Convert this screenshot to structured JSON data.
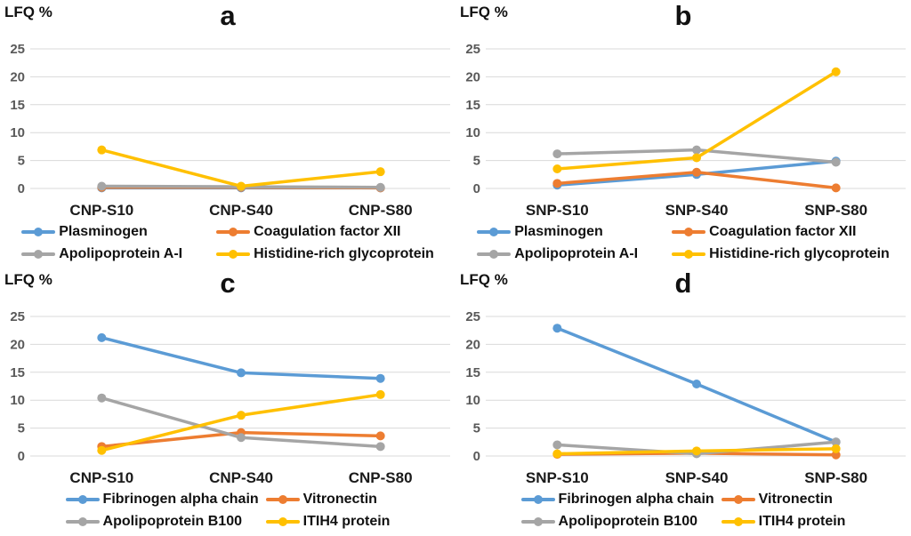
{
  "figure_title": "",
  "colors": {
    "blue": "#5B9BD5",
    "orange": "#ED7D31",
    "gray": "#A5A5A5",
    "yellow": "#FFC000",
    "gridline": "#D9D9D9",
    "tick_text": "#595959"
  },
  "chart_data": [
    {
      "type": "line",
      "title": "a",
      "ylabel": "LFQ %",
      "ylim": [
        0,
        25
      ],
      "y_ticks": [
        0,
        5,
        10,
        15,
        20,
        25
      ],
      "grid": true,
      "legend_position": "bottom",
      "categories": [
        "CNP-S10",
        "CNP-S40",
        "CNP-S80"
      ],
      "series": [
        {
          "name": "Plasminogen",
          "color": "#5B9BD5",
          "values": [
            0.1,
            0.1,
            0.1
          ]
        },
        {
          "name": "Coagulation factor XII",
          "color": "#ED7D31",
          "values": [
            0.2,
            0.2,
            0.1
          ]
        },
        {
          "name": "Apolipoprotein A-I",
          "color": "#A5A5A5",
          "values": [
            0.4,
            0.3,
            0.2
          ]
        },
        {
          "name": "Histidine-rich glycoprotein",
          "color": "#FFC000",
          "values": [
            6.9,
            0.4,
            3.0
          ]
        }
      ]
    },
    {
      "type": "line",
      "title": "b",
      "ylabel": "LFQ %",
      "ylim": [
        0,
        25
      ],
      "y_ticks": [
        0,
        5,
        10,
        15,
        20,
        25
      ],
      "grid": true,
      "legend_position": "bottom",
      "categories": [
        "SNP-S10",
        "SNP-S40",
        "SNP-S80"
      ],
      "series": [
        {
          "name": "Plasminogen",
          "color": "#5B9BD5",
          "values": [
            0.6,
            2.5,
            4.9
          ]
        },
        {
          "name": "Coagulation factor XII",
          "color": "#ED7D31",
          "values": [
            0.9,
            2.9,
            0.1
          ]
        },
        {
          "name": "Apolipoprotein A-I",
          "color": "#A5A5A5",
          "values": [
            6.2,
            6.9,
            4.7
          ]
        },
        {
          "name": "Histidine-rich glycoprotein",
          "color": "#FFC000",
          "values": [
            3.5,
            5.5,
            20.9
          ]
        }
      ]
    },
    {
      "type": "line",
      "title": "c",
      "ylabel": "LFQ %",
      "ylim": [
        0,
        25
      ],
      "y_ticks": [
        0,
        5,
        10,
        15,
        20,
        25
      ],
      "grid": true,
      "legend_position": "bottom",
      "categories": [
        "CNP-S10",
        "CNP-S40",
        "CNP-S80"
      ],
      "series": [
        {
          "name": "Fibrinogen alpha chain",
          "color": "#5B9BD5",
          "values": [
            21.2,
            14.9,
            13.9
          ]
        },
        {
          "name": "Vitronectin",
          "color": "#ED7D31",
          "values": [
            1.7,
            4.2,
            3.6
          ]
        },
        {
          "name": "Apolipoprotein B100",
          "color": "#A5A5A5",
          "values": [
            10.4,
            3.3,
            1.7
          ]
        },
        {
          "name": "ITIH4 protein",
          "color": "#FFC000",
          "values": [
            1.0,
            7.3,
            11.0
          ]
        }
      ]
    },
    {
      "type": "line",
      "title": "d",
      "ylabel": "LFQ %",
      "ylim": [
        0,
        25
      ],
      "y_ticks": [
        0,
        5,
        10,
        15,
        20,
        25
      ],
      "grid": true,
      "legend_position": "bottom",
      "categories": [
        "SNP-S10",
        "SNP-S40",
        "SNP-S80"
      ],
      "series": [
        {
          "name": "Fibrinogen alpha chain",
          "color": "#5B9BD5",
          "values": [
            22.9,
            12.9,
            2.5
          ]
        },
        {
          "name": "Vitronectin",
          "color": "#ED7D31",
          "values": [
            0.3,
            0.5,
            0.2
          ]
        },
        {
          "name": "Apolipoprotein B100",
          "color": "#A5A5A5",
          "values": [
            2.0,
            0.4,
            2.5
          ]
        },
        {
          "name": "ITIH4 protein",
          "color": "#FFC000",
          "values": [
            0.4,
            0.9,
            1.3
          ]
        }
      ]
    }
  ]
}
